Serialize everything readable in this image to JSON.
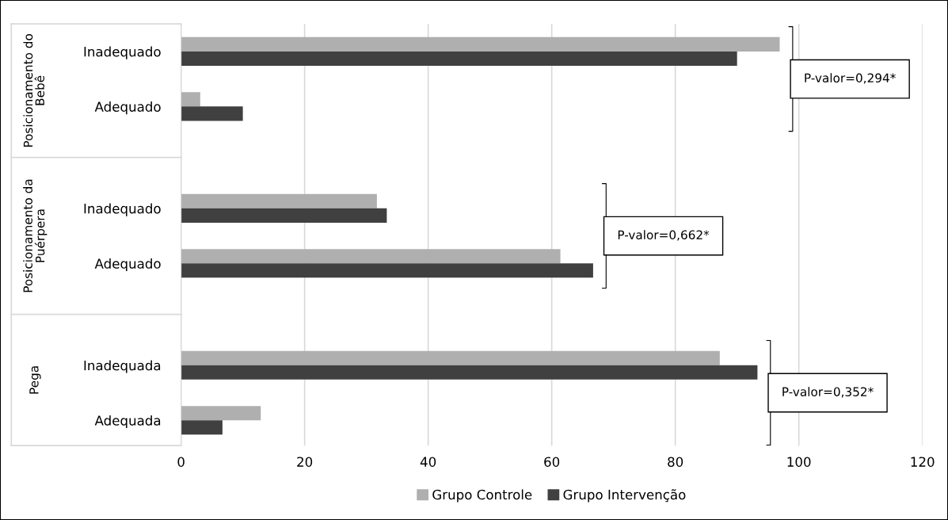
{
  "chart_data": {
    "type": "bar",
    "orientation": "horizontal",
    "categories": [
      "Inadequado",
      "Adequado",
      "Inadequado",
      "Adequado",
      "Inadequada",
      "Adequada"
    ],
    "series": [
      {
        "name": "Grupo Controle",
        "color": "#afafaf",
        "values": [
          96.9,
          3.1,
          31.7,
          61.4,
          87.2,
          12.9
        ]
      },
      {
        "name": "Grupo Intervenção",
        "color": "#404040",
        "values": [
          90.0,
          10.0,
          33.3,
          66.7,
          93.3,
          6.7
        ]
      }
    ],
    "xlim": [
      0,
      120
    ],
    "xticks": [
      0,
      20,
      40,
      60,
      80,
      100,
      120
    ],
    "grid": "x",
    "legend": "bottom",
    "annotations": [
      "Posicionamento do Bebê",
      "Posicionamento da Puérpera",
      "Pega",
      "P-valor=0,294*",
      "P-valor=0,662*",
      "P-valor=0,352*"
    ]
  }
}
